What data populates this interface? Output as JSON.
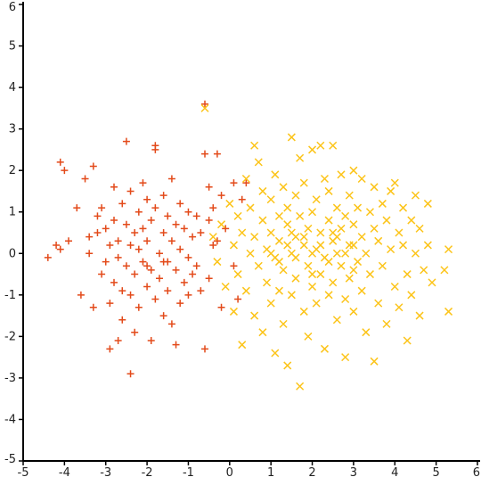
{
  "chart_data": {
    "type": "scatter",
    "title": "",
    "xlabel": "",
    "ylabel": "",
    "xlim": [
      -5,
      6
    ],
    "ylim": [
      -5,
      6
    ],
    "x_ticks": [
      "-5",
      "-4",
      "-3",
      "-2",
      "-1",
      "0",
      "1",
      "2",
      "3",
      "4",
      "5",
      "6"
    ],
    "y_ticks": [
      "6",
      "5",
      "4",
      "3",
      "2",
      "1",
      "0",
      "-1",
      "-2",
      "-3",
      "-4",
      "-5"
    ],
    "grid": false,
    "legend": "none",
    "series": [
      {
        "marker": "plus",
        "color": "#e34a1a",
        "points": [
          [
            -4.4,
            -0.1
          ],
          [
            -4.2,
            0.2
          ],
          [
            -4.1,
            0.1
          ],
          [
            -4.1,
            2.2
          ],
          [
            -4.0,
            2.0
          ],
          [
            -3.9,
            0.3
          ],
          [
            -3.7,
            1.1
          ],
          [
            -3.6,
            -1.0
          ],
          [
            -3.5,
            1.8
          ],
          [
            -3.4,
            0.4
          ],
          [
            -3.4,
            0.0
          ],
          [
            -3.3,
            2.1
          ],
          [
            -3.2,
            0.9
          ],
          [
            -3.2,
            0.5
          ],
          [
            -3.1,
            -0.5
          ],
          [
            -3.1,
            1.1
          ],
          [
            -3.0,
            0.6
          ],
          [
            -3.0,
            -0.2
          ],
          [
            -2.9,
            0.2
          ],
          [
            -2.9,
            -1.2
          ],
          [
            -2.9,
            -2.3
          ],
          [
            -2.8,
            1.6
          ],
          [
            -2.8,
            0.8
          ],
          [
            -2.8,
            -0.7
          ],
          [
            -2.7,
            0.3
          ],
          [
            -2.7,
            -0.1
          ],
          [
            -2.6,
            1.2
          ],
          [
            -2.6,
            -0.9
          ],
          [
            -2.6,
            -1.6
          ],
          [
            -2.5,
            2.7
          ],
          [
            -2.5,
            0.7
          ],
          [
            -2.5,
            -0.3
          ],
          [
            -2.4,
            1.5
          ],
          [
            -2.4,
            0.2
          ],
          [
            -2.4,
            -1.0
          ],
          [
            -2.3,
            0.5
          ],
          [
            -2.3,
            -0.5
          ],
          [
            -2.3,
            -1.9
          ],
          [
            -2.2,
            1.0
          ],
          [
            -2.2,
            0.1
          ],
          [
            -2.2,
            -1.3
          ],
          [
            -2.1,
            1.7
          ],
          [
            -2.1,
            0.6
          ],
          [
            -2.1,
            -0.2
          ],
          [
            -2.0,
            -0.8
          ],
          [
            -2.0,
            1.3
          ],
          [
            -2.0,
            0.3
          ],
          [
            -1.9,
            -2.1
          ],
          [
            -1.9,
            0.8
          ],
          [
            -1.9,
            -0.4
          ],
          [
            -1.8,
            2.5
          ],
          [
            -1.8,
            2.6
          ],
          [
            -1.8,
            1.1
          ],
          [
            -1.8,
            -1.1
          ],
          [
            -1.7,
            0.0
          ],
          [
            -1.7,
            -0.6
          ],
          [
            -1.6,
            1.4
          ],
          [
            -1.6,
            0.5
          ],
          [
            -1.6,
            -1.5
          ],
          [
            -1.5,
            0.9
          ],
          [
            -1.5,
            -0.2
          ],
          [
            -1.5,
            -0.9
          ],
          [
            -1.4,
            0.3
          ],
          [
            -1.4,
            1.8
          ],
          [
            -1.4,
            -1.7
          ],
          [
            -1.3,
            0.7
          ],
          [
            -1.3,
            -0.4
          ],
          [
            -1.3,
            -2.2
          ],
          [
            -1.2,
            1.2
          ],
          [
            -1.2,
            0.1
          ],
          [
            -1.2,
            -1.2
          ],
          [
            -1.1,
            0.6
          ],
          [
            -1.1,
            -0.7
          ],
          [
            -1.0,
            1.0
          ],
          [
            -1.0,
            -0.1
          ],
          [
            -1.0,
            -1.0
          ],
          [
            -0.9,
            0.4
          ],
          [
            -0.9,
            -0.5
          ],
          [
            -0.8,
            0.9
          ],
          [
            -0.8,
            -0.3
          ],
          [
            -0.7,
            0.5
          ],
          [
            -0.7,
            -0.9
          ],
          [
            -0.6,
            3.6
          ],
          [
            -0.6,
            2.4
          ],
          [
            -0.6,
            -2.3
          ],
          [
            -0.5,
            1.6
          ],
          [
            -0.5,
            0.8
          ],
          [
            -0.5,
            -0.6
          ],
          [
            -0.4,
            0.2
          ],
          [
            -0.4,
            1.1
          ],
          [
            -0.3,
            2.4
          ],
          [
            -0.3,
            0.3
          ],
          [
            -0.2,
            -1.3
          ],
          [
            -0.2,
            1.4
          ],
          [
            -0.1,
            0.6
          ],
          [
            0.1,
            1.7
          ],
          [
            0.1,
            -0.3
          ],
          [
            0.2,
            -1.1
          ],
          [
            0.3,
            1.3
          ],
          [
            0.4,
            1.7
          ],
          [
            -2.4,
            -2.9
          ],
          [
            -2.7,
            -2.1
          ],
          [
            -3.3,
            -1.3
          ],
          [
            -2.0,
            -0.3
          ],
          [
            -1.6,
            -0.2
          ]
        ]
      },
      {
        "marker": "x",
        "color": "#fcc419",
        "points": [
          [
            -0.6,
            3.5
          ],
          [
            -0.4,
            0.4
          ],
          [
            -0.3,
            -0.2
          ],
          [
            -0.2,
            0.7
          ],
          [
            -0.1,
            -0.8
          ],
          [
            0.0,
            1.2
          ],
          [
            0.1,
            0.2
          ],
          [
            0.1,
            -1.4
          ],
          [
            0.2,
            0.9
          ],
          [
            0.2,
            -0.5
          ],
          [
            0.3,
            -2.2
          ],
          [
            0.3,
            0.5
          ],
          [
            0.4,
            1.8
          ],
          [
            0.4,
            -0.9
          ],
          [
            0.5,
            0.0
          ],
          [
            0.5,
            1.1
          ],
          [
            0.6,
            2.6
          ],
          [
            0.6,
            -1.5
          ],
          [
            0.6,
            0.4
          ],
          [
            0.7,
            -0.3
          ],
          [
            0.7,
            2.2
          ],
          [
            0.8,
            0.8
          ],
          [
            0.8,
            -1.9
          ],
          [
            0.8,
            1.5
          ],
          [
            0.9,
            0.1
          ],
          [
            0.9,
            -0.7
          ],
          [
            1.0,
            1.3
          ],
          [
            1.0,
            0.5
          ],
          [
            1.0,
            -1.2
          ],
          [
            1.1,
            -2.4
          ],
          [
            1.1,
            1.9
          ],
          [
            1.1,
            -0.1
          ],
          [
            1.2,
            0.9
          ],
          [
            1.2,
            -0.9
          ],
          [
            1.2,
            0.3
          ],
          [
            1.3,
            1.6
          ],
          [
            1.3,
            -0.4
          ],
          [
            1.3,
            -1.7
          ],
          [
            1.4,
            0.7
          ],
          [
            1.4,
            -2.7
          ],
          [
            1.4,
            1.1
          ],
          [
            1.5,
            2.8
          ],
          [
            1.5,
            0.0
          ],
          [
            1.5,
            -1.0
          ],
          [
            1.6,
            0.4
          ],
          [
            1.6,
            1.4
          ],
          [
            1.6,
            -0.6
          ],
          [
            1.7,
            -3.2
          ],
          [
            1.7,
            2.3
          ],
          [
            1.7,
            0.9
          ],
          [
            1.8,
            -1.4
          ],
          [
            1.8,
            0.2
          ],
          [
            1.8,
            1.7
          ],
          [
            1.9,
            -0.3
          ],
          [
            1.9,
            0.6
          ],
          [
            1.9,
            -2.0
          ],
          [
            2.0,
            1.0
          ],
          [
            2.0,
            -0.8
          ],
          [
            2.0,
            2.5
          ],
          [
            2.1,
            0.1
          ],
          [
            2.1,
            1.3
          ],
          [
            2.1,
            -1.2
          ],
          [
            2.2,
            0.5
          ],
          [
            2.2,
            -0.5
          ],
          [
            2.2,
            2.6
          ],
          [
            2.3,
            1.8
          ],
          [
            2.3,
            -0.1
          ],
          [
            2.3,
            -2.3
          ],
          [
            2.4,
            0.8
          ],
          [
            2.4,
            -1.0
          ],
          [
            2.4,
            1.5
          ],
          [
            2.5,
            0.3
          ],
          [
            2.5,
            -0.7
          ],
          [
            2.5,
            2.6
          ],
          [
            2.6,
            1.1
          ],
          [
            2.6,
            -1.6
          ],
          [
            2.6,
            0.0
          ],
          [
            2.7,
            0.6
          ],
          [
            2.7,
            -0.3
          ],
          [
            2.7,
            1.9
          ],
          [
            2.8,
            -1.1
          ],
          [
            2.8,
            0.9
          ],
          [
            2.8,
            -2.5
          ],
          [
            2.9,
            0.2
          ],
          [
            2.9,
            1.4
          ],
          [
            2.9,
            -0.6
          ],
          [
            3.0,
            0.7
          ],
          [
            3.0,
            -1.4
          ],
          [
            3.0,
            2.0
          ],
          [
            3.1,
            -0.2
          ],
          [
            3.1,
            1.1
          ],
          [
            3.2,
            0.4
          ],
          [
            3.2,
            -0.9
          ],
          [
            3.2,
            1.8
          ],
          [
            3.3,
            -1.9
          ],
          [
            3.3,
            0.0
          ],
          [
            3.4,
            1.0
          ],
          [
            3.4,
            -0.5
          ],
          [
            3.5,
            0.6
          ],
          [
            3.5,
            1.6
          ],
          [
            3.5,
            -2.6
          ],
          [
            3.6,
            -1.2
          ],
          [
            3.6,
            0.3
          ],
          [
            3.7,
            1.2
          ],
          [
            3.7,
            -0.3
          ],
          [
            3.8,
            0.8
          ],
          [
            3.8,
            -1.7
          ],
          [
            3.9,
            0.1
          ],
          [
            3.9,
            1.5
          ],
          [
            4.0,
            -0.8
          ],
          [
            4.0,
            1.7
          ],
          [
            4.1,
            0.5
          ],
          [
            4.1,
            -1.3
          ],
          [
            4.2,
            0.2
          ],
          [
            4.2,
            1.1
          ],
          [
            4.3,
            -0.5
          ],
          [
            4.3,
            -2.1
          ],
          [
            4.4,
            0.8
          ],
          [
            4.4,
            -1.0
          ],
          [
            4.5,
            1.4
          ],
          [
            4.5,
            0.0
          ],
          [
            4.6,
            -1.5
          ],
          [
            4.6,
            0.6
          ],
          [
            4.7,
            -0.4
          ],
          [
            4.8,
            1.2
          ],
          [
            4.8,
            0.2
          ],
          [
            4.9,
            -0.7
          ],
          [
            5.2,
            -0.4
          ],
          [
            5.3,
            0.1
          ],
          [
            5.3,
            -1.4
          ],
          [
            1.0,
            0.0
          ],
          [
            1.2,
            -0.2
          ],
          [
            1.4,
            0.2
          ],
          [
            1.6,
            -0.1
          ],
          [
            1.8,
            0.4
          ],
          [
            2.0,
            0.0
          ],
          [
            2.2,
            0.2
          ],
          [
            2.4,
            -0.2
          ],
          [
            2.6,
            0.4
          ],
          [
            2.8,
            0.0
          ],
          [
            3.0,
            0.2
          ],
          [
            1.5,
            0.5
          ],
          [
            2.5,
            0.5
          ],
          [
            2.0,
            -0.5
          ],
          [
            3.0,
            -0.4
          ]
        ]
      }
    ]
  }
}
